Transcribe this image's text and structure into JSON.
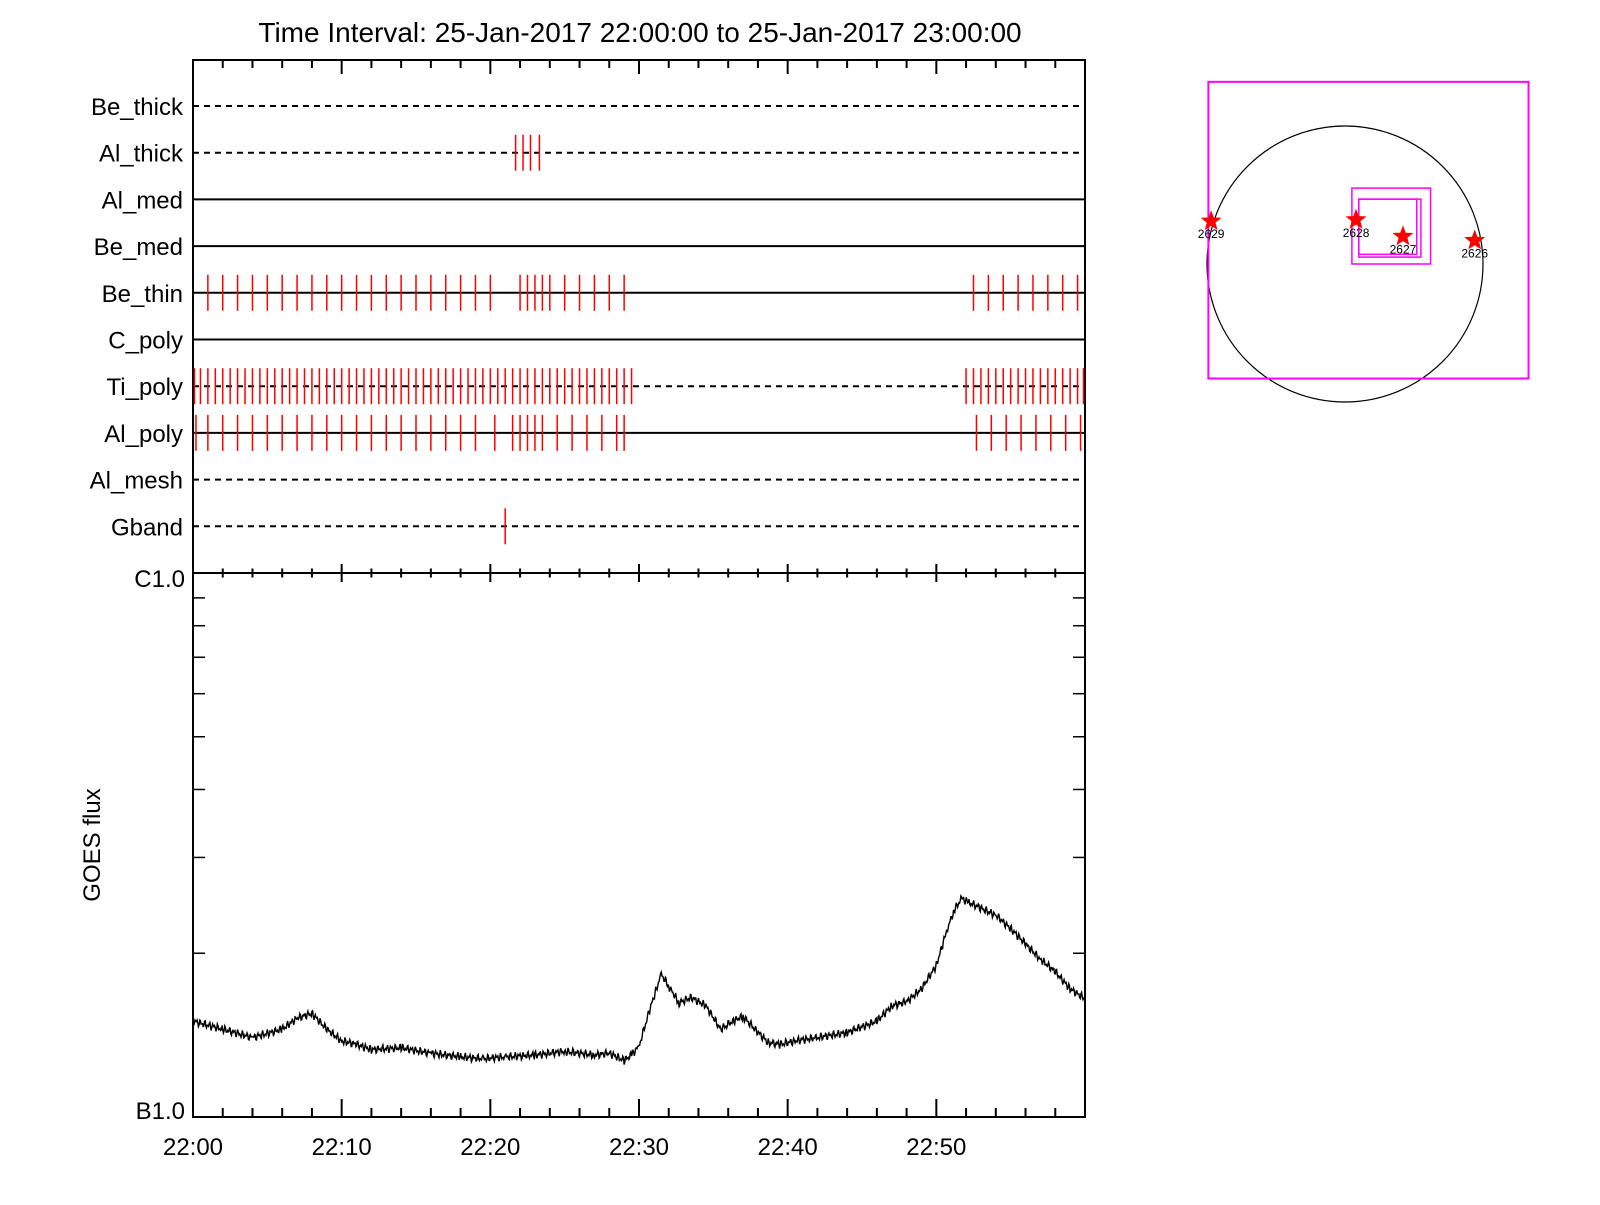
{
  "title": "Time Interval: 25-Jan-2017 22:00:00 to 25-Jan-2017 23:00:00",
  "colors": {
    "mark": "#ff0000",
    "axis": "#000000",
    "box": "#ff00ff"
  },
  "chart_data": [
    {
      "type": "event-timeline",
      "x_unit": "minutes after 22:00",
      "xlim": [
        0,
        60
      ],
      "rows": [
        {
          "label": "Be_thick",
          "style": "dashed",
          "marks": []
        },
        {
          "label": "Al_thick",
          "style": "dashed",
          "marks": [
            21.7,
            22.2,
            22.7,
            23.3
          ]
        },
        {
          "label": "Al_med",
          "style": "solid",
          "marks": []
        },
        {
          "label": "Be_med",
          "style": "solid",
          "marks": []
        },
        {
          "label": "Be_thin",
          "style": "solid",
          "marks": [
            1,
            2,
            3,
            4,
            5,
            6,
            7,
            8,
            9,
            10,
            11,
            12,
            13,
            14,
            15,
            16,
            17,
            18,
            19,
            20,
            22,
            22.5,
            23,
            23.5,
            24,
            25,
            26,
            27,
            28,
            29,
            52.5,
            53.5,
            54.5,
            55.5,
            56.5,
            57.5,
            58.5,
            59.5
          ]
        },
        {
          "label": "C_poly",
          "style": "solid",
          "marks": []
        },
        {
          "label": "Ti_poly",
          "style": "dashed",
          "marks": [
            0.1,
            0.5,
            1,
            1.5,
            2,
            2.5,
            3,
            3.5,
            4,
            4.5,
            5,
            5.5,
            6,
            6.5,
            7,
            7.5,
            8,
            8.5,
            9,
            9.5,
            10,
            10.5,
            11,
            11.5,
            12,
            12.5,
            13,
            13.5,
            14,
            14.5,
            15,
            15.5,
            16,
            16.5,
            17,
            17.5,
            18,
            18.5,
            19,
            19.5,
            20,
            20.5,
            21,
            21.5,
            22,
            22.5,
            23,
            23.5,
            24,
            24.5,
            25,
            25.5,
            26,
            26.5,
            27,
            27.5,
            28,
            28.5,
            29,
            29.5,
            52,
            52.5,
            53,
            53.5,
            54,
            54.5,
            55,
            55.5,
            56,
            56.5,
            57,
            57.5,
            58,
            58.5,
            59,
            59.5,
            59.9
          ]
        },
        {
          "label": "Al_poly",
          "style": "solid",
          "marks": [
            0.2,
            1,
            2,
            3,
            4,
            5,
            6,
            7,
            8,
            9,
            10,
            11,
            12,
            13,
            14,
            15,
            16,
            17,
            18,
            19,
            20.3,
            21.5,
            22,
            22.5,
            23,
            23.5,
            24.5,
            25.5,
            26.5,
            27.5,
            28.5,
            29,
            52.7,
            53.7,
            54.7,
            55.7,
            56.7,
            57.7,
            58.7,
            59.7
          ]
        },
        {
          "label": "Al_mesh",
          "style": "dashed",
          "marks": []
        },
        {
          "label": "Gband",
          "style": "dashed",
          "marks": [
            21
          ]
        }
      ]
    },
    {
      "type": "line",
      "ylabel": "GOES flux",
      "y_scale": "log",
      "ylim": [
        1e-07,
        1e-06
      ],
      "ytick_labels": [
        {
          "value": 1e-06,
          "label": "C1.0"
        },
        {
          "value": 1e-07,
          "label": "B1.0"
        }
      ],
      "xlim": [
        0,
        60
      ],
      "xticks": [
        {
          "value": 0,
          "label": "22:00"
        },
        {
          "value": 10,
          "label": "22:10"
        },
        {
          "value": 20,
          "label": "22:20"
        },
        {
          "value": 30,
          "label": "22:30"
        },
        {
          "value": 40,
          "label": "22:40"
        },
        {
          "value": 50,
          "label": "22:50"
        }
      ],
      "x": [
        0,
        2,
        4,
        6,
        7,
        8,
        9,
        10,
        11,
        12,
        14,
        16,
        18,
        19.5,
        21,
        23,
        25,
        27,
        28,
        29,
        29.5,
        30,
        30.8,
        31.5,
        32,
        32.7,
        33.5,
        34.5,
        35.5,
        36.3,
        37,
        37.8,
        38.7,
        39.5,
        40.5,
        42,
        44,
        46,
        47,
        48,
        49,
        50,
        50.7,
        51.2,
        51.7,
        52.2,
        53,
        54,
        55,
        56,
        57,
        58,
        59,
        60
      ],
      "y": [
        1.5e-07,
        1.45e-07,
        1.4e-07,
        1.45e-07,
        1.52e-07,
        1.55e-07,
        1.45e-07,
        1.38e-07,
        1.36e-07,
        1.33e-07,
        1.34e-07,
        1.31e-07,
        1.29e-07,
        1.28e-07,
        1.29e-07,
        1.3e-07,
        1.32e-07,
        1.3e-07,
        1.31e-07,
        1.27e-07,
        1.3e-07,
        1.35e-07,
        1.6e-07,
        1.83e-07,
        1.74e-07,
        1.62e-07,
        1.66e-07,
        1.6e-07,
        1.45e-07,
        1.5e-07,
        1.53e-07,
        1.45e-07,
        1.37e-07,
        1.36e-07,
        1.38e-07,
        1.4e-07,
        1.43e-07,
        1.5e-07,
        1.6e-07,
        1.63e-07,
        1.72e-07,
        1.9e-07,
        2.2e-07,
        2.4e-07,
        2.52e-07,
        2.48e-07,
        2.42e-07,
        2.35e-07,
        2.22e-07,
        2.08e-07,
        1.95e-07,
        1.85e-07,
        1.72e-07,
        1.65e-07
      ]
    },
    {
      "type": "scatter",
      "description_free": true,
      "points": [
        {
          "label": "2629",
          "x": -0.97,
          "y": 0.31
        },
        {
          "label": "2628",
          "x": 0.08,
          "y": 0.32
        },
        {
          "label": "2627",
          "x": 0.42,
          "y": 0.2
        },
        {
          "label": "2626",
          "x": 0.94,
          "y": 0.17
        }
      ],
      "boxes": [
        {
          "x0": -0.99,
          "x1": 1.33,
          "y0": -0.83,
          "y1": 1.32
        },
        {
          "x0": 0.05,
          "x1": 0.62,
          "y0": 0.0,
          "y1": 0.55
        },
        {
          "x0": 0.1,
          "x1": 0.55,
          "y0": 0.05,
          "y1": 0.47
        },
        {
          "x0": 0.1,
          "x1": 0.52,
          "y0": 0.07,
          "y1": 0.47
        }
      ]
    }
  ]
}
